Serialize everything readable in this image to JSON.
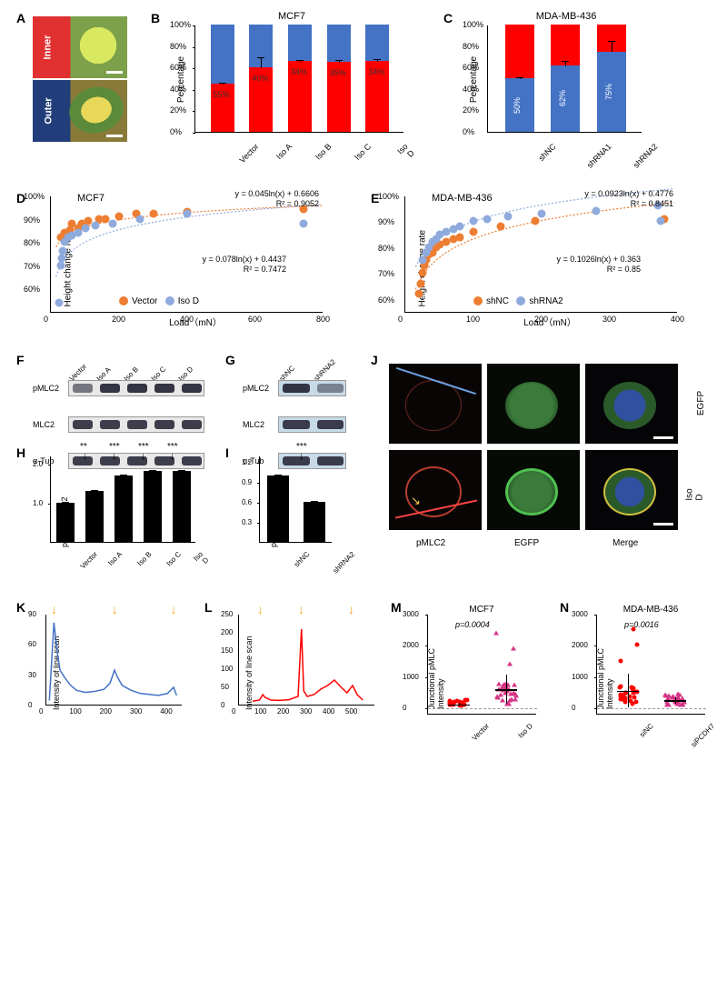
{
  "panels": {
    "A": {
      "label": "A",
      "inner": "Inner",
      "outer": "Outer"
    },
    "B": {
      "label": "B",
      "title": "MCF7",
      "ylabel": "Percentage",
      "yticks": [
        "0%",
        "20%",
        "40%",
        "60%",
        "80%",
        "100%"
      ],
      "cats": [
        "Vector",
        "Iso A",
        "Iso B",
        "Iso C",
        "Iso D"
      ],
      "red": [
        45,
        60,
        66,
        65,
        66
      ],
      "blue": [
        55,
        40,
        34,
        35,
        34
      ],
      "err": [
        2,
        10,
        2,
        3,
        3
      ],
      "pct_labels": [
        "55%",
        "40%",
        "34%",
        "35%",
        "34%"
      ],
      "colors": {
        "red": "#ff0000",
        "blue": "#4472c4"
      }
    },
    "C": {
      "label": "C",
      "title": "MDA-MB-436",
      "ylabel": "Percentage",
      "yticks": [
        "0%",
        "20%",
        "40%",
        "60%",
        "80%",
        "100%"
      ],
      "cats": [
        "shNC",
        "shRNA1",
        "shRNA2"
      ],
      "red": [
        50,
        38,
        25
      ],
      "blue": [
        50,
        62,
        75
      ],
      "err": [
        2,
        5,
        11
      ],
      "pct_labels_v": [
        "50%",
        "62%",
        "75%"
      ]
    },
    "D": {
      "label": "D",
      "title": "MCF7",
      "xlabel": "Load（mN）",
      "ylabel": "Height change rate",
      "xlim": [
        0,
        800
      ],
      "xticks": [
        0,
        200,
        400,
        600,
        800
      ],
      "ylim": [
        50,
        100
      ],
      "yticks": [
        "60%",
        "70%",
        "80%",
        "90%",
        "100%"
      ],
      "eq1": "y = 0.045ln(x) + 0.6606",
      "r1": "R² = 0.9052",
      "eq2": "y = 0.078ln(x) + 0.4437",
      "r2": "R² = 0.7472",
      "legend": [
        "Vector",
        "Iso D"
      ],
      "orange_pts": [
        [
          30,
          82
        ],
        [
          40,
          84
        ],
        [
          55,
          85
        ],
        [
          60,
          88
        ],
        [
          80,
          86
        ],
        [
          90,
          88
        ],
        [
          110,
          89
        ],
        [
          140,
          90
        ],
        [
          160,
          90
        ],
        [
          200,
          91
        ],
        [
          250,
          92
        ],
        [
          300,
          92
        ],
        [
          400,
          93
        ],
        [
          740,
          94
        ]
      ],
      "blue_pts": [
        [
          25,
          54
        ],
        [
          30,
          70
        ],
        [
          32,
          73
        ],
        [
          35,
          76
        ],
        [
          40,
          80
        ],
        [
          50,
          82
        ],
        [
          60,
          83
        ],
        [
          80,
          84
        ],
        [
          100,
          86
        ],
        [
          130,
          87
        ],
        [
          180,
          88
        ],
        [
          260,
          90
        ],
        [
          400,
          92
        ],
        [
          740,
          88
        ]
      ]
    },
    "E": {
      "label": "E",
      "title": "MDA-MB-436",
      "xlabel": "Load（mN）",
      "ylabel": "Height change rate",
      "xlim": [
        0,
        400
      ],
      "xticks": [
        0,
        100,
        200,
        300,
        400
      ],
      "ylim": [
        55,
        100
      ],
      "yticks": [
        "60%",
        "70%",
        "80%",
        "90%",
        "100%"
      ],
      "eq1": "y = 0.0923ln(x) + 0.4776",
      "r1": "R² = 0.8451",
      "eq2": "y = 0.1026ln(x) + 0.363",
      "r2": "R² = 0.85",
      "legend": [
        "shNC",
        "shRNA2"
      ],
      "orange_pts": [
        [
          20,
          62
        ],
        [
          22,
          66
        ],
        [
          25,
          70
        ],
        [
          28,
          73
        ],
        [
          30,
          75
        ],
        [
          35,
          77
        ],
        [
          40,
          78
        ],
        [
          45,
          80
        ],
        [
          50,
          81
        ],
        [
          60,
          82
        ],
        [
          70,
          83
        ],
        [
          80,
          84
        ],
        [
          100,
          86
        ],
        [
          140,
          88
        ],
        [
          190,
          90
        ],
        [
          380,
          91
        ]
      ],
      "blue_pts": [
        [
          25,
          75
        ],
        [
          30,
          78
        ],
        [
          35,
          80
        ],
        [
          40,
          82
        ],
        [
          45,
          83
        ],
        [
          50,
          85
        ],
        [
          60,
          86
        ],
        [
          70,
          87
        ],
        [
          80,
          88
        ],
        [
          100,
          90
        ],
        [
          120,
          91
        ],
        [
          150,
          92
        ],
        [
          200,
          93
        ],
        [
          280,
          94
        ],
        [
          370,
          96
        ],
        [
          375,
          90
        ]
      ]
    },
    "F": {
      "label": "F",
      "headers": [
        "Vector",
        "Iso A",
        "Iso B",
        "Iso C",
        "Iso D"
      ],
      "rows": [
        "pMLC2",
        "MLC2",
        "α-Tub"
      ]
    },
    "G": {
      "label": "G",
      "headers": [
        "shNC",
        "shRNA2"
      ],
      "rows": [
        "pMLC2",
        "MLC2",
        "α-Tub"
      ]
    },
    "H": {
      "label": "H",
      "ylabel": "pMLC2/MLC2",
      "cats": [
        "Vector",
        "Iso A",
        "Iso B",
        "Iso C",
        "Iso D"
      ],
      "vals": [
        1.0,
        1.3,
        1.7,
        1.8,
        1.8
      ],
      "err": [
        0.04,
        0.04,
        0.03,
        0.05,
        0.05
      ],
      "ymax": 2.2,
      "yticks": [
        "1.0",
        "2.0"
      ],
      "sig": [
        "**",
        "***",
        "***",
        "***"
      ]
    },
    "I": {
      "label": "I",
      "ylabel": "pMLC2/MLC2",
      "cats": [
        "shNC",
        "shRNA2"
      ],
      "vals": [
        1.0,
        0.6
      ],
      "err": [
        0.03,
        0.03
      ],
      "ymax": 1.3,
      "yticks": [
        "0.3",
        "0.6",
        "0.9",
        "1.2"
      ],
      "sig": [
        "***"
      ]
    },
    "J": {
      "label": "J",
      "cols": [
        "pMLC2",
        "EGFP",
        "Merge"
      ],
      "rows": [
        "EGFP",
        "Iso D"
      ]
    },
    "K": {
      "label": "K",
      "ylabel": "Intensity of line scan",
      "ylim": [
        0,
        90
      ],
      "yticks": [
        0,
        30,
        60,
        90
      ],
      "xlim": [
        0,
        450
      ],
      "xticks": [
        0,
        100,
        200,
        300,
        400
      ],
      "color": "#4472c4",
      "arrows": [
        30,
        230,
        425
      ],
      "pts": [
        [
          10,
          5
        ],
        [
          25,
          82
        ],
        [
          35,
          55
        ],
        [
          45,
          35
        ],
        [
          60,
          28
        ],
        [
          80,
          20
        ],
        [
          100,
          15
        ],
        [
          130,
          13
        ],
        [
          160,
          14
        ],
        [
          190,
          16
        ],
        [
          210,
          22
        ],
        [
          225,
          35
        ],
        [
          235,
          28
        ],
        [
          250,
          20
        ],
        [
          280,
          15
        ],
        [
          310,
          12
        ],
        [
          340,
          11
        ],
        [
          370,
          10
        ],
        [
          400,
          12
        ],
        [
          420,
          18
        ],
        [
          430,
          10
        ]
      ]
    },
    "L": {
      "label": "L",
      "ylabel": "Intensity of line scan",
      "ylim": [
        0,
        250
      ],
      "yticks": [
        0,
        50,
        100,
        150,
        200,
        250
      ],
      "xlim": [
        0,
        600
      ],
      "xticks": [
        0,
        100,
        200,
        300,
        400,
        500
      ],
      "color": "#ff0000",
      "arrows": [
        100,
        280,
        500
      ],
      "pts": [
        [
          60,
          12
        ],
        [
          90,
          15
        ],
        [
          105,
          30
        ],
        [
          115,
          22
        ],
        [
          140,
          15
        ],
        [
          180,
          14
        ],
        [
          220,
          16
        ],
        [
          260,
          25
        ],
        [
          275,
          210
        ],
        [
          285,
          40
        ],
        [
          300,
          25
        ],
        [
          330,
          30
        ],
        [
          360,
          45
        ],
        [
          390,
          55
        ],
        [
          420,
          70
        ],
        [
          450,
          50
        ],
        [
          475,
          35
        ],
        [
          500,
          55
        ],
        [
          520,
          30
        ],
        [
          545,
          15
        ]
      ]
    },
    "M": {
      "label": "M",
      "title": "MCF7",
      "ylabel": "Junctional pMLC\nIntensity",
      "cats": [
        "Vector",
        "Iso D"
      ],
      "pval": "p=0.0004",
      "ylim": [
        -200,
        3000
      ],
      "yticks": [
        0,
        1000,
        2000,
        3000
      ]
    },
    "N": {
      "label": "N",
      "title": "MDA-MB-436",
      "ylabel": "Junctional pMLC\nIntensity",
      "cats": [
        "siNC",
        "siPCDH7"
      ],
      "pval": "p=0.0016",
      "ylim": [
        -200,
        3000
      ],
      "yticks": [
        0,
        1000,
        2000,
        3000
      ]
    }
  },
  "colors": {
    "orange": "#ed7d31",
    "blue": "#8faadc",
    "red": "#ff0000",
    "barblue": "#4472c4",
    "yellow_arrow": "#f5a623"
  }
}
